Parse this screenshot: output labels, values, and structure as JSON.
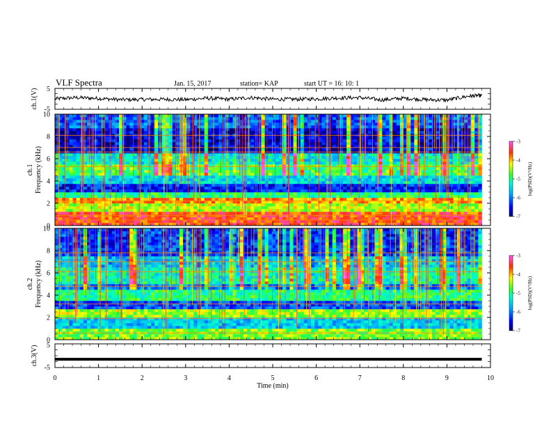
{
  "header": {
    "title": "VLF Spectra",
    "date": "Jan. 15, 2017",
    "station": "station= KAP",
    "start_ut": "start  UT =  16: 10: 1"
  },
  "chart_data": [
    {
      "type": "line",
      "panel": "ch1-waveform",
      "ylabel": "ch.1(V)",
      "ylim": [
        -5,
        5
      ],
      "yticks": [
        "5",
        "-5"
      ],
      "x_range": [
        0,
        10
      ],
      "color": "#000000",
      "x": [
        0,
        0.5,
        1,
        1.5,
        2,
        2.5,
        3,
        3.5,
        4,
        4.5,
        5,
        5.5,
        6,
        6.5,
        7,
        7.5,
        8,
        8.5,
        9,
        9.5,
        9.8
      ],
      "values": [
        0,
        0.6,
        0.2,
        -0.4,
        -0.3,
        -0.2,
        -0.4,
        0.3,
        -0.2,
        0.6,
        -0.2,
        -0.2,
        0.0,
        0.4,
        0.6,
        -0.5,
        0.3,
        -0.4,
        -0.6,
        1.3,
        1.6
      ]
    },
    {
      "type": "heatmap",
      "panel": "ch1-spectrogram",
      "ylabel_line1": "ch.1",
      "ylabel_line2": "Frequency (kHz)",
      "ylim": [
        0,
        10
      ],
      "yticks": [
        "0",
        "2",
        "4",
        "6",
        "8",
        "10"
      ],
      "x_range": [
        0,
        10
      ],
      "data_end_x": 9.8,
      "colorbar": {
        "label": "log(PSD)(V²/Hz)",
        "range": [
          -7,
          -3
        ],
        "ticks": [
          "-3",
          "-4",
          "-5",
          "-6",
          "-7"
        ]
      },
      "bands_khz": [
        {
          "from": 0,
          "to": 1.3,
          "level": -3.6
        },
        {
          "from": 1.3,
          "to": 1.9,
          "level": -4.4
        },
        {
          "from": 1.9,
          "to": 2.5,
          "level": -3.9
        },
        {
          "from": 2.5,
          "to": 2.9,
          "level": -5.0
        },
        {
          "from": 2.9,
          "to": 3.7,
          "level": -6.4
        },
        {
          "from": 3.7,
          "to": 4.4,
          "level": -5.5
        },
        {
          "from": 4.4,
          "to": 5.4,
          "level": -4.8
        },
        {
          "from": 5.4,
          "to": 6.5,
          "level": -5.3
        },
        {
          "from": 6.5,
          "to": 8.7,
          "level": -6.6
        },
        {
          "from": 8.7,
          "to": 10,
          "level": -6.1
        }
      ],
      "lines_khz": [
        0.5,
        0.9,
        2.2,
        5.3,
        6.6,
        7.0,
        8.1
      ]
    },
    {
      "type": "heatmap",
      "panel": "ch2-spectrogram",
      "ylabel_line1": "ch.2",
      "ylabel_line2": "Frequency (kHz)",
      "ylim": [
        0,
        10
      ],
      "yticks": [
        "0",
        "2",
        "4",
        "6",
        "8",
        "10"
      ],
      "x_range": [
        0,
        10
      ],
      "data_end_x": 9.8,
      "colorbar": {
        "label": "log(PSD)(V²/Hz)",
        "range": [
          -7,
          -3
        ],
        "ticks": [
          "-3",
          "-4",
          "-5",
          "-6",
          "-7"
        ]
      },
      "bands_khz": [
        {
          "from": 0,
          "to": 0.9,
          "level": -4.6
        },
        {
          "from": 0.9,
          "to": 2.1,
          "level": -5.6
        },
        {
          "from": 2.1,
          "to": 2.8,
          "level": -4.5
        },
        {
          "from": 2.8,
          "to": 3.5,
          "level": -6.2
        },
        {
          "from": 3.5,
          "to": 4.4,
          "level": -5.0
        },
        {
          "from": 4.4,
          "to": 5.0,
          "level": -6.0
        },
        {
          "from": 5.0,
          "to": 6.4,
          "level": -5.2
        },
        {
          "from": 6.4,
          "to": 7.4,
          "level": -5.6
        },
        {
          "from": 7.4,
          "to": 10,
          "level": -6.3
        }
      ],
      "lines_khz": [
        0.6,
        1.9,
        3.2,
        4.8,
        6.1,
        7.0,
        7.8
      ]
    },
    {
      "type": "line",
      "panel": "ch3-waveform",
      "ylabel": "ch.3(V)",
      "ylim": [
        -5,
        5
      ],
      "yticks": [
        "5",
        "-5"
      ],
      "x_range": [
        0,
        10
      ],
      "color": "#000000",
      "x": [
        0,
        9.8
      ],
      "values": [
        -1.5,
        -1.5
      ]
    }
  ],
  "x_axis": {
    "label": "Time (min)",
    "ticks": [
      "0",
      "1",
      "2",
      "3",
      "4",
      "5",
      "6",
      "7",
      "8",
      "9",
      "10"
    ],
    "range": [
      0,
      10
    ]
  }
}
